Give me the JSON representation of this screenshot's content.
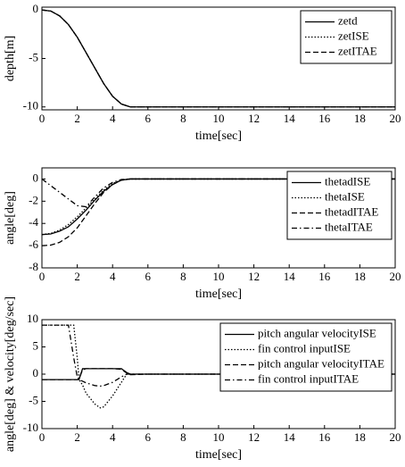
{
  "chart_data": [
    {
      "type": "line",
      "xlabel": "time[sec]",
      "ylabel": "depth[m]",
      "legend": "upper right",
      "grid": false,
      "x": [
        0,
        0.5,
        1,
        1.5,
        2,
        2.5,
        3,
        3.5,
        4,
        4.5,
        5,
        6,
        8,
        10,
        12,
        14,
        16,
        18,
        20
      ],
      "xlim": [
        0,
        20
      ],
      "xticks": [
        0,
        2,
        4,
        6,
        8,
        10,
        12,
        14,
        16,
        18,
        20
      ],
      "ylim": [
        -10.3,
        0.3
      ],
      "yticks": [
        -10,
        -5,
        0
      ],
      "series": [
        {
          "name": "zetd",
          "color": "#000000",
          "linestyle": "solid",
          "values": [
            0,
            -0.1,
            -0.6,
            -1.5,
            -2.8,
            -4.4,
            -6,
            -7.6,
            -8.9,
            -9.7,
            -10,
            -10,
            -10,
            -10,
            -10,
            -10,
            -10,
            -10,
            -10
          ]
        },
        {
          "name": "zetISE",
          "color": "#000000",
          "linestyle": "dotted",
          "values": [
            0,
            -0.1,
            -0.6,
            -1.5,
            -2.8,
            -4.4,
            -6,
            -7.6,
            -8.9,
            -9.7,
            -10,
            -10,
            -10,
            -10,
            -10,
            -10,
            -10,
            -10,
            -10
          ]
        },
        {
          "name": "zetITAE",
          "color": "#000000",
          "linestyle": "dashed",
          "values": [
            0,
            -0.1,
            -0.6,
            -1.5,
            -2.8,
            -4.4,
            -6,
            -7.6,
            -8.9,
            -9.7,
            -10,
            -10,
            -10,
            -10,
            -10,
            -10,
            -10,
            -10,
            -10
          ]
        }
      ]
    },
    {
      "type": "line",
      "xlabel": "time[sec]",
      "ylabel": "angle[deg]",
      "legend": "upper right",
      "grid": false,
      "x": [
        0,
        0.5,
        1,
        1.5,
        2,
        2.5,
        3,
        3.5,
        4,
        4.5,
        5,
        6,
        8,
        10,
        12,
        14,
        16,
        18,
        20
      ],
      "xlim": [
        0,
        20
      ],
      "xticks": [
        0,
        2,
        4,
        6,
        8,
        10,
        12,
        14,
        16,
        18,
        20
      ],
      "ylim": [
        -8,
        1
      ],
      "yticks": [
        -8,
        -6,
        -4,
        -2,
        0
      ],
      "series": [
        {
          "name": "thetadISE",
          "color": "#000000",
          "linestyle": "solid",
          "values": [
            -5,
            -4.95,
            -4.7,
            -4.3,
            -3.6,
            -2.8,
            -1.9,
            -1.1,
            -0.5,
            -0.1,
            0,
            0,
            0,
            0,
            0,
            0,
            0,
            0,
            0
          ]
        },
        {
          "name": "thetaISE",
          "color": "#000000",
          "linestyle": "dotted",
          "values": [
            -5,
            -4.9,
            -4.6,
            -4.1,
            -3.4,
            -2.6,
            -1.8,
            -1,
            -0.4,
            -0.1,
            0,
            0,
            0,
            0,
            0,
            0,
            0,
            0,
            0
          ]
        },
        {
          "name": "thetadITAE",
          "color": "#000000",
          "linestyle": "dashed",
          "values": [
            -6,
            -5.95,
            -5.7,
            -5.2,
            -4.4,
            -3.3,
            -2.2,
            -1.2,
            -0.5,
            -0.1,
            0,
            0,
            0,
            0,
            0,
            0,
            0,
            0,
            0
          ]
        },
        {
          "name": "thetaITAE",
          "color": "#000000",
          "linestyle": "dashdot",
          "values": [
            0,
            -0.6,
            -1.2,
            -1.8,
            -2.4,
            -2.5,
            -1.6,
            -0.8,
            -0.3,
            -0.05,
            0,
            0,
            0,
            0,
            0,
            0,
            0,
            0,
            0
          ]
        }
      ]
    },
    {
      "type": "line",
      "xlabel": "time[sec]",
      "ylabel": "angle[deg] & velocity[deg/sec]",
      "legend": "upper right",
      "grid": false,
      "x": [
        0,
        1,
        1.5,
        1.8,
        2,
        2.1,
        2.3,
        2.5,
        3,
        3.3,
        3.5,
        4,
        4.5,
        4.8,
        5,
        6,
        8,
        10,
        12,
        14,
        16,
        18,
        20
      ],
      "xlim": [
        0,
        20
      ],
      "xticks": [
        0,
        2,
        4,
        6,
        8,
        10,
        12,
        14,
        16,
        18,
        20
      ],
      "ylim": [
        -10,
        10
      ],
      "yticks": [
        -10,
        -5,
        0,
        5,
        10
      ],
      "series": [
        {
          "name": "pitch angular velocityISE",
          "color": "#000000",
          "linestyle": "solid",
          "values": [
            -1,
            -1,
            -1,
            -1,
            -1,
            -1,
            1,
            1,
            1,
            1,
            1,
            1,
            1,
            0.3,
            0,
            0,
            0,
            0,
            0,
            0,
            0,
            0,
            0
          ]
        },
        {
          "name": "fin control inputISE",
          "color": "#000000",
          "linestyle": "dotted",
          "values": [
            9,
            9,
            9,
            9,
            3,
            -1,
            -2,
            -3.5,
            -5.5,
            -6.2,
            -6,
            -4,
            -1.5,
            0,
            0,
            0,
            0,
            0,
            0,
            0,
            0,
            0,
            0
          ]
        },
        {
          "name": "pitch angular velocityITAE",
          "color": "#000000",
          "linestyle": "dashed",
          "values": [
            -1,
            -1,
            -1,
            -1,
            -1,
            -0.9,
            0.8,
            1,
            1,
            1,
            1,
            1,
            0.9,
            0.2,
            -0.1,
            0,
            0,
            0,
            0,
            0,
            0,
            0,
            0
          ]
        },
        {
          "name": "fin control inputITAE",
          "color": "#000000",
          "linestyle": "dashdot",
          "values": [
            9,
            9,
            9,
            3,
            -0.5,
            -1,
            -1.3,
            -1.6,
            -2.1,
            -2.2,
            -2.1,
            -1.5,
            -0.5,
            0,
            0,
            0,
            0,
            0,
            0,
            0,
            0,
            0,
            0
          ]
        }
      ]
    }
  ]
}
